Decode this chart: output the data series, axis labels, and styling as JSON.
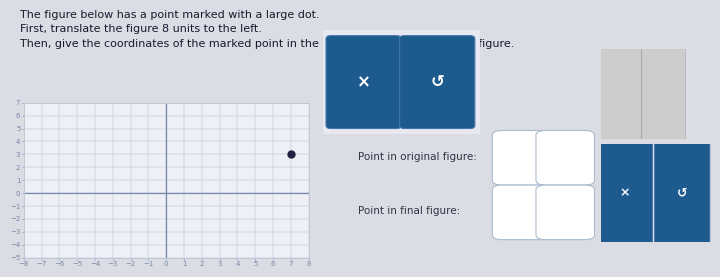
{
  "bg_color": "#dcdce4",
  "title_lines": [
    "The figure below has a point marked with a large dot.",
    "First, translate the figure 8 units to the left.",
    "Then, give the coordinates of the marked point in the original figure and the final figure."
  ],
  "title_fontsize": 8.0,
  "grid_xlim": [
    -8,
    8
  ],
  "grid_ylim": [
    -5,
    7
  ],
  "grid_xticks": [
    -8,
    -7,
    -6,
    -5,
    -4,
    -3,
    -2,
    -1,
    0,
    1,
    2,
    3,
    4,
    5,
    6,
    7,
    8
  ],
  "grid_yticks": [
    -5,
    -4,
    -3,
    -2,
    -1,
    0,
    1,
    2,
    3,
    4,
    5,
    6,
    7
  ],
  "marked_point": [
    7,
    3
  ],
  "dot_color": "#222244",
  "dot_size": 25,
  "axis_color": "#7788aa",
  "grid_color": "#b0c0d4",
  "grid_linewidth": 0.35,
  "axis_linewidth": 0.9,
  "tick_labelsize": 5.0,
  "btn_blue": "#1d5a8e",
  "btn_blue_edge": "#4477aa",
  "btn_text_color": "#ffffff",
  "btn_x_text": "×",
  "btn_undo_text": "↺",
  "label_original": "Point in original figure:",
  "label_final": "Point in final figure:",
  "label_fontsize": 7.5,
  "panel_bg": "#f2f2f8",
  "panel_border": "#bbbbcc",
  "white": "#ffffff",
  "input_border": "#aabbcc",
  "grey_btn_color": "#cccccc",
  "grey_btn_edge": "#aaaaaa",
  "graph_bg": "#eef0f5",
  "graph_border": "#c0c8d8"
}
